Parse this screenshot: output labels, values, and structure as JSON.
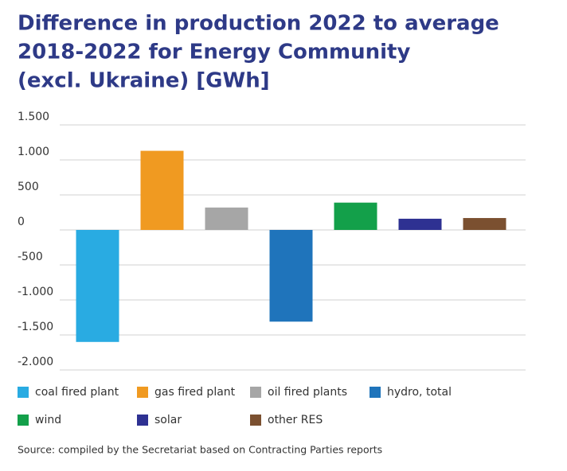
{
  "chart_data": {
    "type": "bar",
    "title": [
      "Difference in production 2022 to average",
      "2018-2022 for Energy Community",
      "(excl. Ukraine) [GWh]"
    ],
    "categories": [
      "coal fired plant",
      "gas fired plant",
      "oil fired plants",
      "hydro, total",
      "wind",
      "solar",
      "other RES"
    ],
    "values": [
      -1600,
      1130,
      320,
      -1310,
      390,
      160,
      170
    ],
    "colors": [
      "#29abe2",
      "#f09a21",
      "#a6a6a6",
      "#1f74bb",
      "#13a04a",
      "#2e3192",
      "#7b5030"
    ],
    "ylim": [
      -2000,
      1500
    ],
    "yticks": [
      {
        "value": 1500,
        "label": "1.500"
      },
      {
        "value": 1000,
        "label": "1.000"
      },
      500,
      0,
      -500,
      {
        "value": -1000,
        "label": "-1.000"
      },
      {
        "value": -1500,
        "label": "-1.500"
      },
      {
        "value": -2000,
        "label": "-2.000"
      }
    ],
    "grid": true,
    "legend": "bottom",
    "source": "Source: compiled by the Secretariat based on Contracting Parties reports"
  }
}
